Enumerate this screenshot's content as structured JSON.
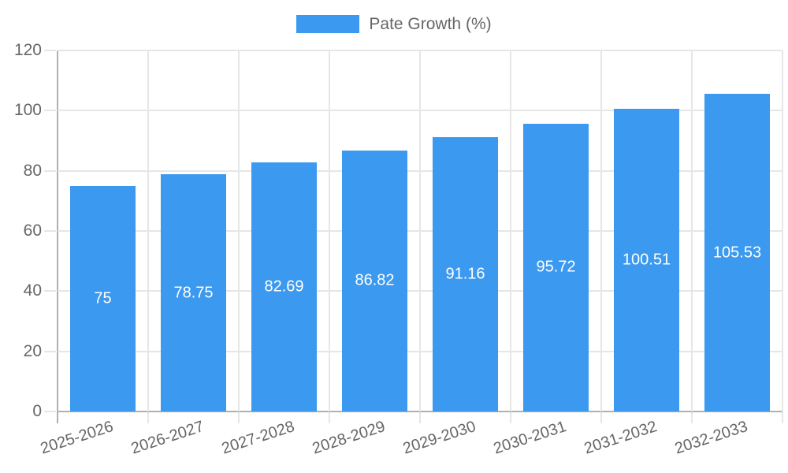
{
  "chart_data": {
    "type": "bar",
    "title": "",
    "xlabel": "",
    "ylabel": "",
    "legend_label": "Pate Growth (%)",
    "legend_position": "top",
    "grid": true,
    "bar_color": "#3B99EF",
    "axis_color": "#b0b0b0",
    "gridline_color": "#e6e6e6",
    "tick_label_color": "#666666",
    "value_label_color": "#ffffff",
    "categories": [
      "2025-2026",
      "2026-2027",
      "2027-2028",
      "2028-2029",
      "2029-2030",
      "2030-2031",
      "2031-2032",
      "2032-2033"
    ],
    "values": [
      75,
      78.75,
      82.69,
      86.82,
      91.16,
      95.72,
      100.51,
      105.53
    ],
    "value_labels": [
      "75",
      "78.75",
      "82.69",
      "86.82",
      "91.16",
      "95.72",
      "100.51",
      "105.53"
    ],
    "ylim": [
      0,
      120
    ],
    "yticks": [
      0,
      20,
      40,
      60,
      80,
      100,
      120
    ]
  }
}
